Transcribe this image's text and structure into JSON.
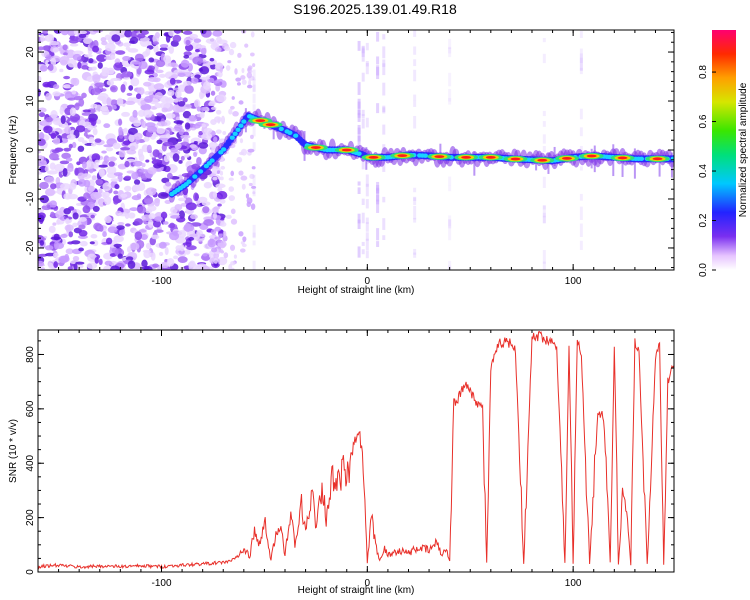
{
  "title": "S196.2025.139.01.49.R18",
  "colors": {
    "snr_line": "#e8302a",
    "spectral_ridge": "#ff1a1a",
    "noise": "#7d2ae8"
  },
  "chart_data": [
    {
      "type": "heatmap",
      "xlabel": "Height of straight line (km)",
      "ylabel": "Frequency (Hz)",
      "xlim": [
        -160,
        149
      ],
      "ylim": [
        -24.5,
        24.5
      ],
      "xticks": [
        -100,
        0,
        100
      ],
      "xtick_labels": [
        "-100",
        "0",
        "100"
      ],
      "yticks": [
        -20,
        -10,
        0,
        10,
        20
      ],
      "ytick_labels": [
        "-20",
        "-10",
        "0",
        "10",
        "20"
      ],
      "colorbar": {
        "label": "Normalized spectral amplitude",
        "range": [
          0,
          0.97
        ],
        "ticks": [
          0,
          0.2,
          0.4,
          0.6,
          0.8
        ],
        "tick_labels": [
          "0.0",
          "0.2",
          "0.4",
          "0.6",
          "0.8"
        ],
        "colormap": "rainbow"
      },
      "ridge": {
        "x": [
          -95,
          -88,
          -80,
          -70,
          -63,
          -58,
          -52,
          -46,
          -40,
          -35,
          -30,
          -20,
          -10,
          -2,
          0,
          10,
          20,
          30,
          40,
          50,
          60,
          70,
          80,
          90,
          100,
          110,
          120,
          130,
          140,
          149
        ],
        "y": [
          -9,
          -7,
          -4,
          0,
          4,
          7,
          6,
          5,
          4,
          3,
          1,
          0,
          0,
          -1,
          -1.5,
          -1.5,
          -1,
          -1.2,
          -1.5,
          -1.5,
          -1.5,
          -1.8,
          -2,
          -2.2,
          -1.5,
          -1.2,
          -1.5,
          -1.8,
          -1.8,
          -1.8
        ]
      },
      "ridge_peak_x": [
        -52,
        -47,
        -25,
        -10,
        3,
        17,
        35,
        48,
        60,
        72,
        85,
        97,
        109,
        124,
        141
      ]
    },
    {
      "type": "line",
      "xlabel": "Height of straight line (km)",
      "ylabel": "SNR (10 * v/v)",
      "xlim": [
        -160,
        149
      ],
      "ylim": [
        0,
        890
      ],
      "xticks": [
        -100,
        0,
        100
      ],
      "xtick_labels": [
        "-100",
        "0",
        "100"
      ],
      "yticks": [
        0,
        200,
        400,
        600,
        800
      ],
      "ytick_labels": [
        "0",
        "200",
        "400",
        "600",
        "800"
      ],
      "series": [
        {
          "x": [
            -160,
            -150,
            -140,
            -130,
            -120,
            -110,
            -100,
            -90,
            -80,
            -70,
            -65,
            -60,
            -57,
            -55,
            -52,
            -50,
            -47,
            -45,
            -42,
            -40,
            -37,
            -35,
            -32,
            -30,
            -27,
            -25,
            -22,
            -20,
            -17,
            -15,
            -12,
            -10,
            -8,
            -6,
            -4,
            -2,
            0,
            2,
            4,
            6,
            8,
            10,
            15,
            20,
            25,
            30,
            34,
            36,
            38,
            40,
            42,
            45,
            48,
            52,
            56,
            58,
            60,
            62,
            64,
            68,
            72,
            76,
            80,
            84,
            88,
            92,
            96,
            98,
            100,
            102,
            104,
            108,
            112,
            115,
            118,
            120,
            122,
            124,
            126,
            128,
            130,
            132,
            136,
            140,
            142,
            144,
            146,
            149
          ],
          "y": [
            20,
            25,
            18,
            22,
            20,
            22,
            20,
            25,
            30,
            35,
            45,
            80,
            60,
            150,
            90,
            200,
            40,
            120,
            180,
            60,
            220,
            90,
            250,
            140,
            300,
            180,
            320,
            200,
            350,
            300,
            380,
            330,
            420,
            480,
            520,
            400,
            30,
            200,
            100,
            40,
            90,
            60,
            80,
            70,
            90,
            80,
            110,
            60,
            90,
            40,
            620,
            650,
            700,
            640,
            600,
            30,
            750,
            790,
            840,
            850,
            820,
            30,
            860,
            870,
            850,
            840,
            30,
            820,
            30,
            850,
            800,
            30,
            600,
            560,
            30,
            830,
            30,
            300,
            220,
            30,
            850,
            800,
            30,
            780,
            840,
            30,
            700,
            760
          ]
        }
      ]
    }
  ]
}
